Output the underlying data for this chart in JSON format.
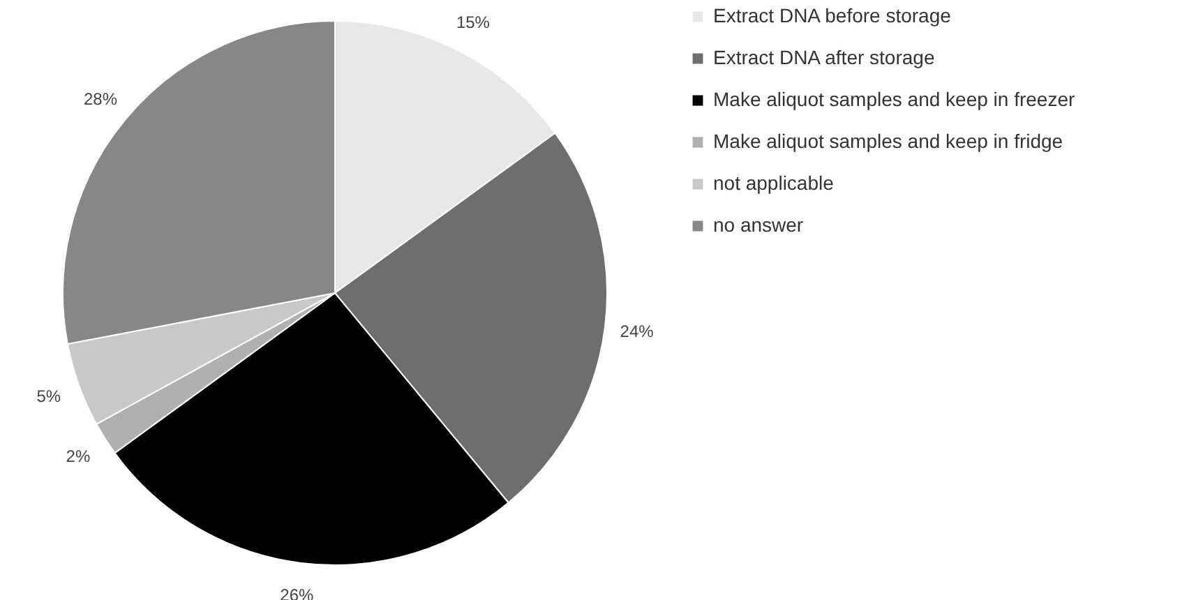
{
  "chart_data": {
    "type": "pie",
    "categories": [
      "Extract DNA before storage",
      "Extract DNA after storage",
      "Make aliquot samples and keep in freezer",
      "Make aliquot samples and keep in fridge",
      "not applicable",
      "no answer"
    ],
    "values": [
      15,
      24,
      26,
      2,
      5,
      28
    ],
    "colors": [
      "#e8e8e8",
      "#6e6e6e",
      "#000000",
      "#b0b0b0",
      "#c8c8c8",
      "#878787"
    ],
    "value_labels": [
      "15%",
      "24%",
      "26%",
      "2%",
      "5%",
      "28%"
    ],
    "legend": "right"
  }
}
